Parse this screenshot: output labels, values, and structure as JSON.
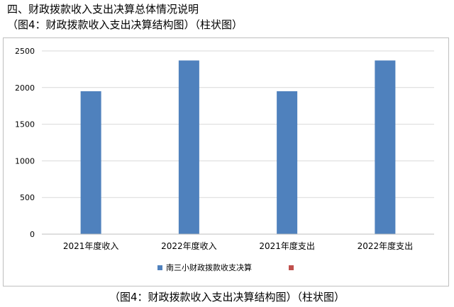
{
  "heading": {
    "line1": "四、财政拨款收入支出决算总体情况说明",
    "line2": "（图4：财政拨款收入支出决算结构图）（柱状图）"
  },
  "caption": "（图4：财政拨款收入支出决算结构图）（柱状图）",
  "chart_data": {
    "type": "bar",
    "title": "",
    "xlabel": "",
    "ylabel": "",
    "categories": [
      "2021年度收入",
      "2022年度收入",
      "2021年度支出",
      "2022年度支出"
    ],
    "series": [
      {
        "name": "南三小财政拨款收支决算",
        "color": "#4f81bd",
        "values": [
          1950,
          2370,
          1950,
          2370
        ]
      }
    ],
    "legend_extra_marker_color": "#c0504d",
    "ylim": [
      0,
      2500
    ],
    "yticks": [
      0,
      500,
      1000,
      1500,
      2000,
      2500
    ],
    "ytick_labels": [
      "0",
      "500",
      "1000",
      "1500",
      "2000",
      "2500"
    ],
    "grid": true,
    "legend_position": "bottom"
  }
}
